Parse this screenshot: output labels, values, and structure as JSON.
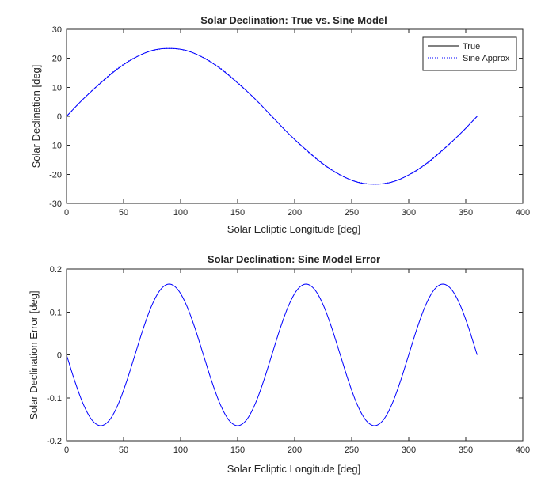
{
  "chart_data": [
    {
      "type": "line",
      "title": "Solar Declination: True vs. Sine Model",
      "xlabel": "Solar Ecliptic Longitude [deg]",
      "ylabel": "Solar Declination [deg]",
      "xlim": [
        0,
        400
      ],
      "ylim": [
        -30,
        30
      ],
      "xticks": [
        0,
        50,
        100,
        150,
        200,
        250,
        300,
        350,
        400
      ],
      "yticks": [
        -30,
        -20,
        -10,
        0,
        10,
        20,
        30
      ],
      "grid": false,
      "legend": "top-right",
      "series": [
        {
          "name": "True",
          "color": "#0000ff",
          "style": "solid",
          "legend_color": "#000000",
          "x": [
            0,
            15,
            30,
            45,
            60,
            75,
            90,
            105,
            120,
            135,
            150,
            165,
            180,
            195,
            210,
            225,
            240,
            255,
            270,
            285,
            300,
            315,
            330,
            345,
            360
          ],
          "values": [
            0,
            6.1,
            11.5,
            16.4,
            20.2,
            22.7,
            23.4,
            22.7,
            20.2,
            16.4,
            11.5,
            6.1,
            0,
            -6.1,
            -11.5,
            -16.4,
            -20.2,
            -22.7,
            -23.4,
            -22.7,
            -20.2,
            -16.4,
            -11.5,
            -6.1,
            0
          ]
        },
        {
          "name": "Sine Approx",
          "color": "#0000ff",
          "style": "dotted",
          "legend_color": "#0000ff",
          "x": [
            0,
            15,
            30,
            45,
            60,
            75,
            90,
            105,
            120,
            135,
            150,
            165,
            180,
            195,
            210,
            225,
            240,
            255,
            270,
            285,
            300,
            315,
            330,
            345,
            360
          ],
          "values": [
            0,
            6.1,
            11.7,
            16.6,
            20.3,
            22.6,
            23.4,
            22.6,
            20.3,
            16.6,
            11.7,
            6.1,
            0,
            -6.1,
            -11.7,
            -16.6,
            -20.3,
            -22.6,
            -23.4,
            -22.6,
            -20.3,
            -16.6,
            -11.7,
            -6.1,
            0
          ]
        }
      ]
    },
    {
      "type": "line",
      "title": "Solar Declination: Sine Model Error",
      "xlabel": "Solar Ecliptic Longitude [deg]",
      "ylabel": "Solar Declination Error [deg]",
      "xlim": [
        0,
        400
      ],
      "ylim": [
        -0.2,
        0.2
      ],
      "xticks": [
        0,
        50,
        100,
        150,
        200,
        250,
        300,
        350,
        400
      ],
      "yticks": [
        -0.2,
        -0.1,
        0,
        0.1,
        0.2
      ],
      "grid": false,
      "legend": "none",
      "series": [
        {
          "color": "#0000ff",
          "style": "solid",
          "x": [
            0,
            7.5,
            15,
            22.5,
            30,
            37.5,
            45,
            52.5,
            60,
            67.5,
            75,
            82.5,
            90,
            97.5,
            105,
            112.5,
            120,
            127.5,
            135,
            142.5,
            150,
            157.5,
            165,
            172.5,
            180,
            187.5,
            195,
            202.5,
            210,
            217.5,
            225,
            232.5,
            240,
            247.5,
            255,
            262.5,
            270,
            277.5,
            285,
            292.5,
            300,
            307.5,
            315,
            322.5,
            330,
            337.5,
            345,
            352.5,
            360
          ],
          "values": [
            0,
            -0.0631,
            -0.1167,
            -0.1524,
            -0.165,
            -0.1524,
            -0.1167,
            -0.0631,
            0,
            0.0631,
            0.1167,
            0.1524,
            0.165,
            0.1524,
            0.1167,
            0.0631,
            0,
            -0.0631,
            -0.1167,
            -0.1524,
            -0.165,
            -0.1524,
            -0.1167,
            -0.0631,
            0,
            0.0631,
            0.1167,
            0.1524,
            0.165,
            0.1524,
            0.1167,
            0.0631,
            0,
            -0.0631,
            -0.1167,
            -0.1524,
            -0.165,
            -0.1524,
            -0.1167,
            -0.0631,
            0,
            0.0631,
            0.1167,
            0.1524,
            0.165,
            0.1524,
            0.1167,
            0.0631,
            0
          ]
        }
      ]
    }
  ]
}
